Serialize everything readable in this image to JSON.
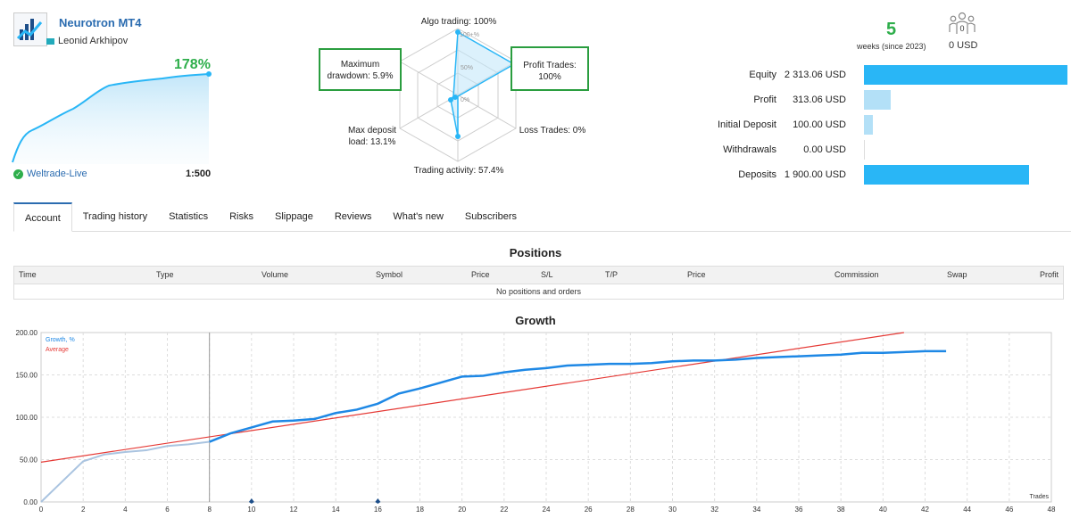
{
  "signal": {
    "name": "Neurotron MT4",
    "author": "Leonid Arkhipov",
    "growth_pct": "178%",
    "broker": "Weltrade-Live",
    "leverage": "1:500"
  },
  "radar": {
    "algo_trading": "Algo trading: 100%",
    "profit_trades": "Profit Trades: 100%",
    "loss_trades": "Loss Trades: 0%",
    "trading_activity": "Trading activity: 57.4%",
    "max_deposit_load": "Max deposit load: 13.1%",
    "max_drawdown": "Maximum drawdown: 5.9%",
    "scale_100": "100+%",
    "scale_50": "50%",
    "scale_0": "0%"
  },
  "summary": {
    "weeks": "5",
    "weeks_label": "weeks (since 2023)",
    "subscribers_count": "0",
    "subscribers_usd": "0 USD",
    "stats": [
      {
        "label": "Equity",
        "value": "2 313.06 USD",
        "fraction": 1.0
      },
      {
        "label": "Profit",
        "value": "313.06 USD",
        "fraction": 0.135
      },
      {
        "label": "Initial Deposit",
        "value": "100.00 USD",
        "fraction": 0.043
      },
      {
        "label": "Withdrawals",
        "value": "0.00 USD",
        "fraction": 0.0
      },
      {
        "label": "Deposits",
        "value": "1 900.00 USD",
        "fraction": 0.821
      }
    ]
  },
  "tabs": [
    "Account",
    "Trading history",
    "Statistics",
    "Risks",
    "Slippage",
    "Reviews",
    "What's new",
    "Subscribers"
  ],
  "positions": {
    "title": "Positions",
    "columns": [
      "Time",
      "Type",
      "Volume",
      "Symbol",
      "Price",
      "S/L",
      "T/P",
      "Price",
      "Commission",
      "Swap",
      "Profit"
    ],
    "empty": "No positions and orders"
  },
  "growth_chart": {
    "title": "Growth",
    "legend_growth": "Growth, %",
    "legend_average": "Average",
    "xlabel": "Trades",
    "colors": {
      "growth": "#1e88e5",
      "growth_early": "#aac4e0",
      "average": "#e53935"
    }
  },
  "chart_data": {
    "type": "line",
    "title": "Growth",
    "xlabel": "Trades",
    "ylabel": "",
    "xlim": [
      0,
      48
    ],
    "ylim": [
      0,
      200
    ],
    "xticks": [
      0,
      2,
      4,
      6,
      8,
      10,
      12,
      14,
      16,
      18,
      20,
      22,
      24,
      26,
      28,
      30,
      32,
      34,
      36,
      38,
      40,
      42,
      44,
      46,
      48
    ],
    "yticks": [
      "0.00",
      "50.00",
      "100.00",
      "150.00",
      "200.00"
    ],
    "series": [
      {
        "name": "Growth, %",
        "x": [
          0,
          1,
          2,
          3,
          4,
          5,
          6,
          7,
          8,
          9,
          10,
          11,
          12,
          13,
          14,
          15,
          16,
          17,
          18,
          19,
          20,
          21,
          22,
          23,
          24,
          25,
          26,
          27,
          28,
          29,
          30,
          31,
          32,
          33,
          34,
          35,
          36,
          37,
          38,
          39,
          40,
          41,
          42,
          43
        ],
        "y": [
          0,
          24,
          48,
          56,
          59,
          61,
          66,
          68,
          71,
          81,
          88,
          95,
          96,
          98,
          105,
          109,
          116,
          128,
          134,
          141,
          148,
          149,
          153,
          156,
          158,
          161,
          162,
          163,
          163,
          164,
          166,
          167,
          167,
          168,
          170,
          171,
          172,
          173,
          174,
          176,
          176,
          177,
          178,
          178
        ]
      },
      {
        "name": "Average",
        "x": [
          0,
          41
        ],
        "y": [
          47,
          200
        ]
      }
    ],
    "markers_x": [
      10,
      16
    ]
  }
}
